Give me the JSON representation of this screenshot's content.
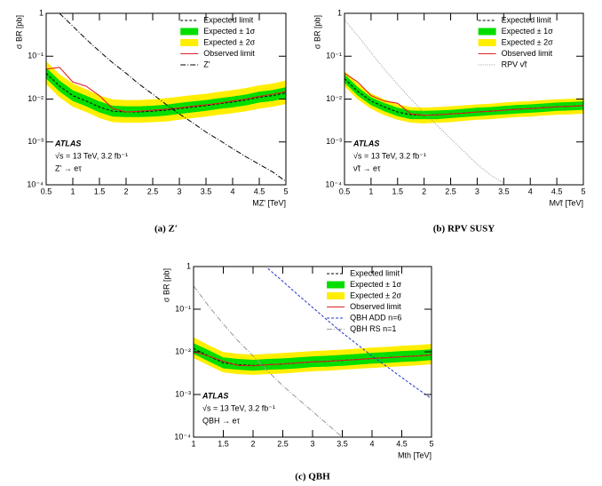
{
  "chart_data": [
    {
      "type": "line",
      "log_y": true,
      "x_label": "MZ' [TeV]",
      "y_label": "σ BR [pb]",
      "caption": "(a) Z′",
      "annotations": [
        "ATLAS",
        "√s = 13 TeV, 3.2 fb⁻¹",
        "Z' → eτ"
      ],
      "xlim": [
        0.5,
        5
      ],
      "xticks": [
        0.5,
        1,
        1.5,
        2,
        2.5,
        3,
        3.5,
        4,
        4.5,
        5
      ],
      "ylim": [
        0.0001,
        1
      ],
      "yticks": [
        {
          "value": 0.0001,
          "label": "10⁻⁴"
        },
        {
          "value": 0.001,
          "label": "10⁻³"
        },
        {
          "value": 0.01,
          "label": "10⁻²"
        },
        {
          "value": 0.1,
          "label": "10⁻¹"
        },
        1
      ],
      "x": [
        0.5,
        0.75,
        1,
        1.25,
        1.5,
        1.75,
        2,
        2.25,
        2.5,
        2.75,
        3,
        3.25,
        3.5,
        3.75,
        4,
        4.25,
        4.5,
        4.75,
        5
      ],
      "series": [
        {
          "name": "Expected limit",
          "style": "dashed",
          "color": "#000000",
          "values": [
            0.04,
            0.02,
            0.012,
            0.009,
            0.0065,
            0.0052,
            0.005,
            0.005,
            0.0052,
            0.0055,
            0.006,
            0.0065,
            0.007,
            0.0078,
            0.0085,
            0.0095,
            0.011,
            0.012,
            0.014
          ]
        },
        {
          "name": "Expected ± 1σ",
          "style": "band",
          "color": "#00dd00",
          "low": [
            0.03,
            0.015,
            0.009,
            0.0068,
            0.0049,
            0.0039,
            0.0038,
            0.0038,
            0.0039,
            0.0041,
            0.0045,
            0.0049,
            0.0053,
            0.0059,
            0.0064,
            0.0071,
            0.0083,
            0.009,
            0.0105
          ],
          "high": [
            0.054,
            0.027,
            0.016,
            0.012,
            0.0088,
            0.007,
            0.0068,
            0.0068,
            0.007,
            0.0074,
            0.0081,
            0.0088,
            0.0095,
            0.0105,
            0.0115,
            0.0128,
            0.0149,
            0.0162,
            0.0189
          ]
        },
        {
          "name": "Expected ± 2σ",
          "style": "band",
          "color": "#ffee00",
          "low": [
            0.022,
            0.011,
            0.0066,
            0.005,
            0.0036,
            0.0029,
            0.0028,
            0.0028,
            0.0029,
            0.003,
            0.0033,
            0.0036,
            0.0039,
            0.0043,
            0.0047,
            0.0052,
            0.006,
            0.0066,
            0.0077
          ],
          "high": [
            0.076,
            0.038,
            0.023,
            0.017,
            0.012,
            0.0099,
            0.0095,
            0.0095,
            0.0099,
            0.0105,
            0.0114,
            0.0124,
            0.0133,
            0.0148,
            0.0162,
            0.018,
            0.021,
            0.023,
            0.027
          ]
        },
        {
          "name": "Observed limit",
          "style": "solid",
          "color": "#dd2222",
          "values": [
            0.05,
            0.055,
            0.025,
            0.02,
            0.012,
            0.006,
            0.005,
            0.0052,
            0.0055,
            0.0058,
            0.0062,
            0.0068,
            0.0073,
            0.008,
            0.009,
            0.01,
            0.0115,
            0.013,
            0.015
          ]
        },
        {
          "name": "Z'",
          "style": "dashdot",
          "color": "#000000",
          "values": [
            null,
            1.0,
            0.5,
            0.25,
            0.13,
            0.07,
            0.04,
            0.022,
            0.013,
            0.0075,
            0.0045,
            0.0028,
            0.0017,
            0.0011,
            0.0007,
            0.00045,
            0.0003,
            0.0002,
            0.00012
          ]
        }
      ]
    },
    {
      "type": "line",
      "log_y": true,
      "x_label": "Mν̃τ [TeV]",
      "y_label": "σ BR [pb]",
      "caption": "(b) RPV SUSY",
      "annotations": [
        "ATLAS",
        "√s = 13 TeV, 3.2 fb⁻¹",
        "ν̃τ → eτ"
      ],
      "xlim": [
        0.5,
        5
      ],
      "xticks": [
        0.5,
        1,
        1.5,
        2,
        2.5,
        3,
        3.5,
        4,
        4.5,
        5
      ],
      "ylim": [
        0.0001,
        1
      ],
      "yticks": [
        {
          "value": 0.0001,
          "label": "10⁻⁴"
        },
        {
          "value": 0.001,
          "label": "10⁻³"
        },
        {
          "value": 0.01,
          "label": "10⁻²"
        },
        {
          "value": 0.1,
          "label": "10⁻¹"
        },
        1
      ],
      "x": [
        0.5,
        0.75,
        1,
        1.25,
        1.5,
        1.75,
        2,
        2.25,
        2.5,
        2.75,
        3,
        3.25,
        3.5,
        3.75,
        4,
        4.25,
        4.5,
        4.75,
        5
      ],
      "series": [
        {
          "name": "Expected limit",
          "style": "dashed",
          "color": "#000000",
          "values": [
            0.03,
            0.015,
            0.009,
            0.0065,
            0.005,
            0.0043,
            0.0042,
            0.0043,
            0.0045,
            0.0047,
            0.005,
            0.0052,
            0.0055,
            0.0058,
            0.006,
            0.0063,
            0.0066,
            0.0068,
            0.007
          ]
        },
        {
          "name": "Expected ± 1σ",
          "style": "band",
          "color": "#00dd00",
          "low": [
            0.024,
            0.012,
            0.0072,
            0.0052,
            0.004,
            0.0034,
            0.0034,
            0.0034,
            0.0036,
            0.0038,
            0.004,
            0.0042,
            0.0044,
            0.0046,
            0.0048,
            0.005,
            0.0053,
            0.0054,
            0.0056
          ],
          "high": [
            0.038,
            0.019,
            0.011,
            0.0081,
            0.0063,
            0.0054,
            0.0053,
            0.0054,
            0.0056,
            0.0059,
            0.0063,
            0.0065,
            0.0069,
            0.0073,
            0.0075,
            0.0079,
            0.0083,
            0.0085,
            0.0088
          ]
        },
        {
          "name": "Expected ± 2σ",
          "style": "band",
          "color": "#ffee00",
          "low": [
            0.02,
            0.0098,
            0.0059,
            0.0042,
            0.0033,
            0.0028,
            0.0027,
            0.0028,
            0.0029,
            0.0031,
            0.0033,
            0.0034,
            0.0036,
            0.0038,
            0.0039,
            0.0041,
            0.0043,
            0.0044,
            0.0046
          ],
          "high": [
            0.045,
            0.023,
            0.0135,
            0.0098,
            0.0075,
            0.0065,
            0.0063,
            0.0065,
            0.0068,
            0.0071,
            0.0075,
            0.0078,
            0.0083,
            0.0087,
            0.009,
            0.0095,
            0.0099,
            0.0102,
            0.0105
          ]
        },
        {
          "name": "Observed limit",
          "style": "solid",
          "color": "#dd2222",
          "values": [
            0.04,
            0.025,
            0.012,
            0.009,
            0.008,
            0.0045,
            0.0042,
            0.0043,
            0.0045,
            0.0047,
            0.005,
            0.0052,
            0.0055,
            0.0058,
            0.006,
            0.0063,
            0.0066,
            0.0068,
            0.007
          ]
        },
        {
          "name": "RPV ν̃τ",
          "style": "dotted",
          "color": "#999999",
          "values": [
            0.7,
            0.3,
            0.12,
            0.05,
            0.022,
            0.01,
            0.0048,
            0.0024,
            0.0012,
            0.0006,
            0.0003,
            0.00017,
            0.00011,
            null,
            null,
            null,
            null,
            null,
            null
          ]
        }
      ]
    },
    {
      "type": "line",
      "log_y": true,
      "x_label": "Mth [TeV]",
      "y_label": "σ BR [pb]",
      "caption": "(c) QBH",
      "annotations": [
        "ATLAS",
        "√s = 13 TeV, 3.2 fb⁻¹",
        "QBH → eτ"
      ],
      "xlim": [
        1,
        5
      ],
      "xticks": [
        1,
        1.5,
        2,
        2.5,
        3,
        3.5,
        4,
        4.5,
        5
      ],
      "ylim": [
        0.0001,
        1
      ],
      "yticks": [
        {
          "value": 0.0001,
          "label": "10⁻⁴"
        },
        {
          "value": 0.001,
          "label": "10⁻³"
        },
        {
          "value": 0.01,
          "label": "10⁻²"
        },
        {
          "value": 0.1,
          "label": "10⁻¹"
        },
        1
      ],
      "x": [
        1,
        1.25,
        1.5,
        1.75,
        2,
        2.25,
        2.5,
        2.75,
        3,
        3.25,
        3.5,
        3.75,
        4,
        4.25,
        4.5,
        4.75,
        5
      ],
      "series": [
        {
          "name": "Expected limit",
          "style": "dashed",
          "color": "#000000",
          "values": [
            0.012,
            0.008,
            0.0055,
            0.005,
            0.0048,
            0.005,
            0.0052,
            0.0055,
            0.0058,
            0.006,
            0.0063,
            0.0066,
            0.007,
            0.0073,
            0.0077,
            0.008,
            0.0085
          ]
        },
        {
          "name": "Expected ± 1σ",
          "style": "band",
          "color": "#00dd00",
          "low": [
            0.009,
            0.006,
            0.0041,
            0.0038,
            0.0036,
            0.0038,
            0.0039,
            0.0041,
            0.0044,
            0.0045,
            0.0047,
            0.005,
            0.0053,
            0.0055,
            0.0058,
            0.006,
            0.0064
          ],
          "high": [
            0.016,
            0.011,
            0.0074,
            0.0068,
            0.0065,
            0.0068,
            0.007,
            0.0074,
            0.0078,
            0.0081,
            0.0085,
            0.0089,
            0.0095,
            0.0099,
            0.0104,
            0.0108,
            0.0115
          ]
        },
        {
          "name": "Expected ± 2σ",
          "style": "band",
          "color": "#ffee00",
          "low": [
            0.0072,
            0.0048,
            0.0033,
            0.003,
            0.0029,
            0.003,
            0.0031,
            0.0033,
            0.0035,
            0.0036,
            0.0038,
            0.004,
            0.0042,
            0.0044,
            0.0046,
            0.0048,
            0.0051
          ],
          "high": [
            0.022,
            0.0144,
            0.0099,
            0.009,
            0.0086,
            0.009,
            0.0094,
            0.0099,
            0.0104,
            0.0108,
            0.0113,
            0.0119,
            0.0126,
            0.0131,
            0.0139,
            0.0144,
            0.0153
          ]
        },
        {
          "name": "Observed limit",
          "style": "solid",
          "color": "#dd2222",
          "values": [
            0.01,
            0.008,
            0.006,
            0.0048,
            0.0047,
            0.005,
            0.0052,
            0.0055,
            0.0058,
            0.006,
            0.0063,
            0.0066,
            0.007,
            0.0073,
            0.0077,
            0.008,
            0.0085
          ]
        },
        {
          "name": "QBH ADD n=6",
          "style": "dashed",
          "color": "#2233cc",
          "values": [
            null,
            null,
            null,
            null,
            null,
            0.9,
            0.45,
            0.22,
            0.11,
            0.055,
            0.028,
            0.015,
            0.008,
            0.0045,
            0.0025,
            0.0014,
            0.0008
          ]
        },
        {
          "name": "QBH RS n=1",
          "style": "dashdot",
          "color": "#999999",
          "values": [
            0.35,
            0.12,
            0.045,
            0.018,
            0.008,
            0.0035,
            0.0016,
            0.0008,
            0.0004,
            0.0002,
            0.0001,
            null,
            null,
            null,
            null,
            null,
            null
          ]
        }
      ]
    }
  ]
}
